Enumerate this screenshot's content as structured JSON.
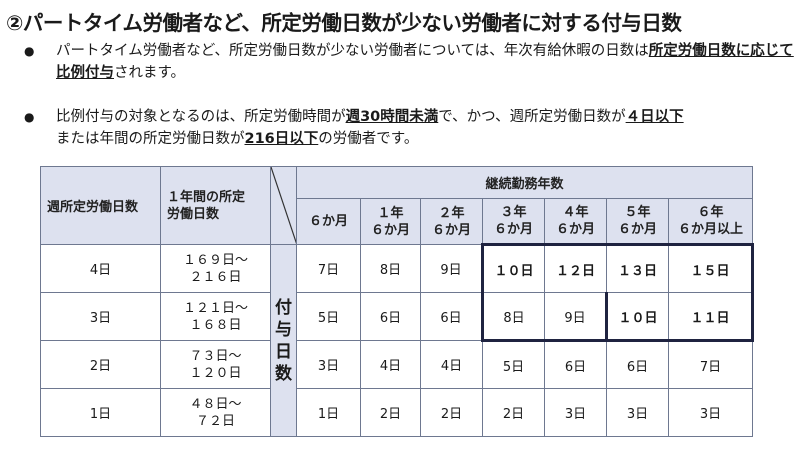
{
  "title": "②パートタイム労働者など、所定労働日数が少ない労働者に対する付与日数",
  "bullets": [
    {
      "pre": "パートタイム労働者など、所定労働日数が少ない労働者については、年次有給休暇の日数は",
      "em": "所定労働日数に応じて比例付与",
      "post": "されます。"
    },
    {
      "pre": "比例付与の対象となるのは、所定労働時間が",
      "em1": "週30時間未満",
      "mid1": "で、かつ、週所定労働日数が",
      "em2": "４日以下",
      "mid2": "または年間の所定労働日数が",
      "em3": "216日以下",
      "post": "の労働者です。"
    }
  ],
  "table": {
    "col_weekly": "週所定労働日数",
    "col_annual_1": "１年間の所定",
    "col_annual_2": "労働日数",
    "group_header": "継続勤務年数",
    "side_label": [
      "付",
      "与",
      "日",
      "数"
    ],
    "years": [
      [
        "６か月",
        ""
      ],
      [
        "１年",
        "６か月"
      ],
      [
        "２年",
        "６か月"
      ],
      [
        "３年",
        "６か月"
      ],
      [
        "４年",
        "６か月"
      ],
      [
        "５年",
        "６か月"
      ],
      [
        "６年",
        "６か月以上"
      ]
    ],
    "rows": [
      {
        "weekly": "4日",
        "annual_1": "１６９日～",
        "annual_2": "２１６日",
        "days": [
          "7日",
          "8日",
          "9日",
          "１０日",
          "１２日",
          "１３日",
          "１５日"
        ]
      },
      {
        "weekly": "3日",
        "annual_1": "１２１日～",
        "annual_2": "１６８日",
        "days": [
          "5日",
          "6日",
          "6日",
          "8日",
          "9日",
          "１０日",
          "１１日"
        ]
      },
      {
        "weekly": "2日",
        "annual_1": "７３日～",
        "annual_2": "１２０日",
        "days": [
          "3日",
          "4日",
          "4日",
          "5日",
          "6日",
          "6日",
          "7日"
        ]
      },
      {
        "weekly": "1日",
        "annual_1": "４８日～",
        "annual_2": "７２日",
        "days": [
          "1日",
          "2日",
          "2日",
          "2日",
          "3日",
          "3日",
          "3日"
        ]
      }
    ]
  }
}
